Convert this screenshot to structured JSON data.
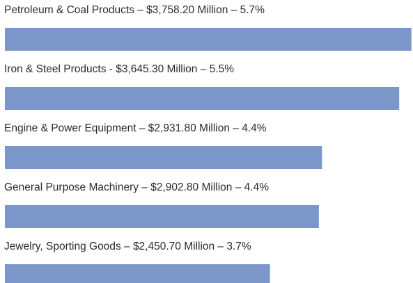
{
  "chart_data": {
    "type": "hbar",
    "categories": [
      "Petroleum & Coal Products – $3,758.20 Million – 5.7%",
      "Iron & Steel Products - $3,645.30 Million – 5.5%",
      "Engine & Power Equipment – $2,931.80 Million – 4.4%",
      "General Purpose Machinery – $2,902.80 Million – 4.4%",
      "Jewelry, Sporting Goods – $2,450.70 Million – 3.7%"
    ],
    "values": [
      3758.2,
      3645.3,
      2931.8,
      2902.8,
      2450.7
    ],
    "color": "#7b97c9",
    "xlim": [
      0,
      3760
    ]
  }
}
